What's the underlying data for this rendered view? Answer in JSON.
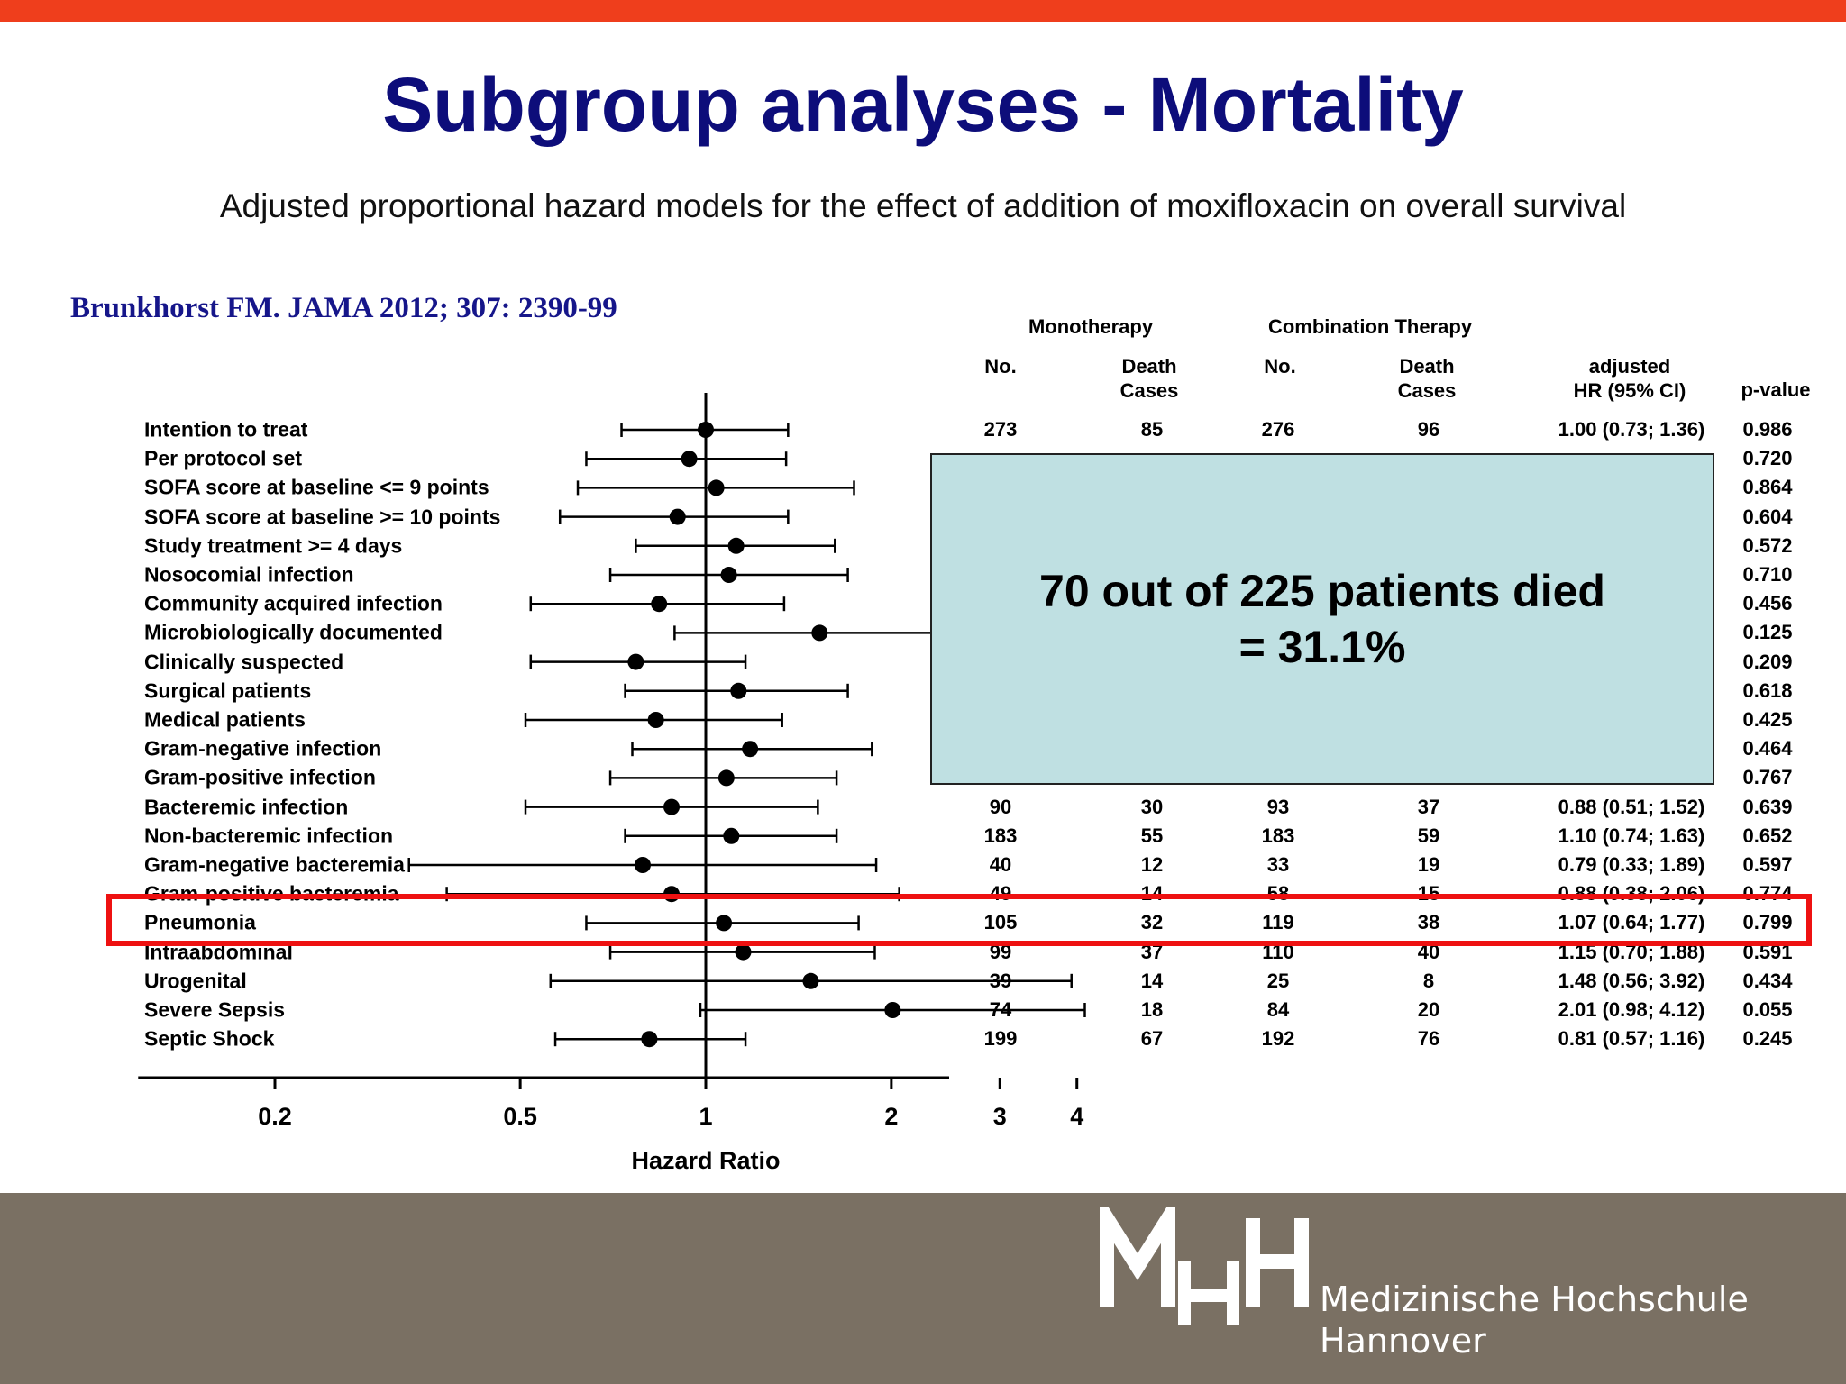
{
  "slide": {
    "title": "Subgroup analyses - Mortality",
    "subtitle": "Adjusted proportional hazard models for the effect of addition of moxifloxacin on overall survival",
    "citation": "Brunkhorst FM. JAMA 2012; 307: 2390-99"
  },
  "table_headers": {
    "monotherapy": "Monotherapy",
    "combination": "Combination Therapy",
    "no_mono": "No.",
    "death_mono_1": "Death",
    "death_mono_2": "Cases",
    "no_combo": "No.",
    "death_combo_1": "Death",
    "death_combo_2": "Cases",
    "hr_1": "adjusted",
    "hr_2": "HR (95% CI)",
    "pvalue": "p-value"
  },
  "overlay": {
    "line1": "70 out of 225 patients died",
    "line2": "= 31.1%"
  },
  "logo": {
    "line1": "Medizinische Hochschule",
    "line2": "Hannover"
  },
  "chart_data": {
    "type": "forest",
    "xlabel": "Hazard Ratio",
    "x_scale": "log",
    "x_ticks": [
      0.2,
      0.5,
      1,
      2,
      3,
      4
    ],
    "x_tick_labels": [
      "0.2",
      "0.5",
      "1",
      "2",
      "3",
      "4"
    ],
    "xlim": [
      0.12,
      5.0
    ],
    "reference_line": 1,
    "rows": [
      {
        "label": "Intention to treat",
        "hr": 1.0,
        "lo": 0.73,
        "hi": 1.36,
        "mono_no": "273",
        "mono_death": "85",
        "combo_no": "276",
        "combo_death": "96",
        "hr_text": "1.00 (0.73; 1.36)",
        "p": "0.986"
      },
      {
        "label": "Per protocol set",
        "hr": 0.94,
        "lo": 0.64,
        "hi": 1.35,
        "mono_no": "",
        "mono_death": "",
        "combo_no": "",
        "combo_death": "",
        "hr_text": "",
        "p": "0.720"
      },
      {
        "label": "SOFA score at baseline <= 9 points",
        "hr": 1.04,
        "lo": 0.62,
        "hi": 1.74,
        "mono_no": "",
        "mono_death": "",
        "combo_no": "",
        "combo_death": "",
        "hr_text": "",
        "p": "0.864"
      },
      {
        "label": "SOFA score at baseline >= 10 points",
        "hr": 0.9,
        "lo": 0.58,
        "hi": 1.36,
        "mono_no": "",
        "mono_death": "",
        "combo_no": "",
        "combo_death": "",
        "hr_text": "",
        "p": "0.604"
      },
      {
        "label": "Study treatment >= 4 days",
        "hr": 1.12,
        "lo": 0.77,
        "hi": 1.62,
        "mono_no": "",
        "mono_death": "",
        "combo_no": "",
        "combo_death": "",
        "hr_text": "",
        "p": "0.572"
      },
      {
        "label": "Nosocomial infection",
        "hr": 1.09,
        "lo": 0.7,
        "hi": 1.7,
        "mono_no": "",
        "mono_death": "",
        "combo_no": "",
        "combo_death": "",
        "hr_text": "",
        "p": "0.710"
      },
      {
        "label": "Community acquired infection",
        "hr": 0.84,
        "lo": 0.52,
        "hi": 1.34,
        "mono_no": "",
        "mono_death": "",
        "combo_no": "",
        "combo_death": "",
        "hr_text": "",
        "p": "0.456"
      },
      {
        "label": "Microbiologically documented",
        "hr": 1.53,
        "lo": 0.89,
        "hi": 2.63,
        "mono_no": "",
        "mono_death": "",
        "combo_no": "",
        "combo_death": "",
        "hr_text": "",
        "p": "0.125"
      },
      {
        "label": "Clinically suspected",
        "hr": 0.77,
        "lo": 0.52,
        "hi": 1.16,
        "mono_no": "",
        "mono_death": "",
        "combo_no": "",
        "combo_death": "",
        "hr_text": "",
        "p": "0.209"
      },
      {
        "label": "Surgical patients",
        "hr": 1.13,
        "lo": 0.74,
        "hi": 1.7,
        "mono_no": "",
        "mono_death": "",
        "combo_no": "",
        "combo_death": "",
        "hr_text": "",
        "p": "0.618"
      },
      {
        "label": "Medical patients",
        "hr": 0.83,
        "lo": 0.51,
        "hi": 1.33,
        "mono_no": "",
        "mono_death": "",
        "combo_no": "",
        "combo_death": "",
        "hr_text": "",
        "p": "0.425"
      },
      {
        "label": "Gram-negative infection",
        "hr": 1.18,
        "lo": 0.76,
        "hi": 1.86,
        "mono_no": "",
        "mono_death": "",
        "combo_no": "",
        "combo_death": "",
        "hr_text": "",
        "p": "0.464"
      },
      {
        "label": "Gram-positive infection",
        "hr": 1.08,
        "lo": 0.7,
        "hi": 1.63,
        "mono_no": "",
        "mono_death": "",
        "combo_no": "",
        "combo_death": "",
        "hr_text": "",
        "p": "0.767"
      },
      {
        "label": "Bacteremic infection",
        "hr": 0.88,
        "lo": 0.51,
        "hi": 1.52,
        "mono_no": "90",
        "mono_death": "30",
        "combo_no": "93",
        "combo_death": "37",
        "hr_text": "0.88 (0.51; 1.52)",
        "p": "0.639"
      },
      {
        "label": "Non-bacteremic infection",
        "hr": 1.1,
        "lo": 0.74,
        "hi": 1.63,
        "mono_no": "183",
        "mono_death": "55",
        "combo_no": "183",
        "combo_death": "59",
        "hr_text": "1.10 (0.74; 1.63)",
        "p": "0.652"
      },
      {
        "label": "Gram-negative bacteremia",
        "hr": 0.79,
        "lo": 0.33,
        "hi": 1.89,
        "mono_no": "40",
        "mono_death": "12",
        "combo_no": "33",
        "combo_death": "19",
        "hr_text": "0.79 (0.33; 1.89)",
        "p": "0.597"
      },
      {
        "label": "Gram-positive bacteremia",
        "hr": 0.88,
        "lo": 0.38,
        "hi": 2.06,
        "mono_no": "49",
        "mono_death": "14",
        "combo_no": "58",
        "combo_death": "15",
        "hr_text": "0.88 (0.38; 2.06)",
        "p": "0.774"
      },
      {
        "label": "Pneumonia",
        "hr": 1.07,
        "lo": 0.64,
        "hi": 1.77,
        "mono_no": "105",
        "mono_death": "32",
        "combo_no": "119",
        "combo_death": "38",
        "hr_text": "1.07 (0.64; 1.77)",
        "p": "0.799"
      },
      {
        "label": "Intraabdominal",
        "hr": 1.15,
        "lo": 0.7,
        "hi": 1.88,
        "mono_no": "99",
        "mono_death": "37",
        "combo_no": "110",
        "combo_death": "40",
        "hr_text": "1.15 (0.70; 1.88)",
        "p": "0.591"
      },
      {
        "label": "Urogenital",
        "hr": 1.48,
        "lo": 0.56,
        "hi": 3.92,
        "mono_no": "39",
        "mono_death": "14",
        "combo_no": "25",
        "combo_death": "8",
        "hr_text": "1.48 (0.56; 3.92)",
        "p": "0.434"
      },
      {
        "label": "Severe Sepsis",
        "hr": 2.01,
        "lo": 0.98,
        "hi": 4.12,
        "mono_no": "74",
        "mono_death": "18",
        "combo_no": "84",
        "combo_death": "20",
        "hr_text": "2.01 (0.98; 4.12)",
        "p": "0.055"
      },
      {
        "label": "Septic Shock",
        "hr": 0.81,
        "lo": 0.57,
        "hi": 1.16,
        "mono_no": "199",
        "mono_death": "67",
        "combo_no": "192",
        "combo_death": "76",
        "hr_text": "0.81 (0.57; 1.16)",
        "p": "0.245"
      }
    ]
  }
}
